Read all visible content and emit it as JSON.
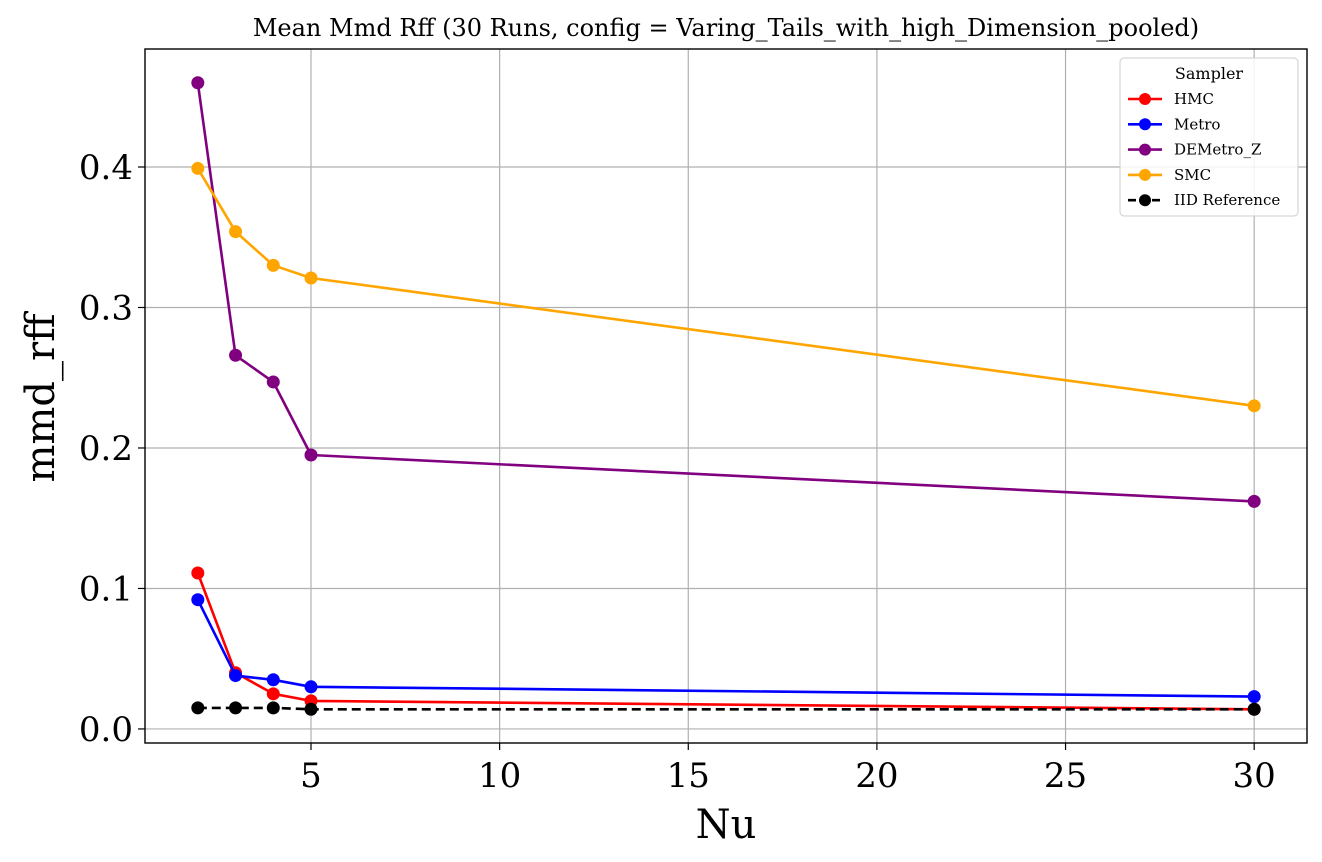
{
  "chart_data": {
    "type": "line",
    "title": "Mean Mmd Rff (30 Runs, config = Varing_Tails_with_high_Dimension_pooled)",
    "xlabel": "Nu",
    "ylabel": "mmd_rff",
    "xlim": [
      0.6,
      31.4
    ],
    "ylim": [
      -0.01,
      0.484
    ],
    "xticks": [
      5,
      10,
      15,
      20,
      25,
      30
    ],
    "yticks": [
      0.0,
      0.1,
      0.2,
      0.3,
      0.4
    ],
    "xtick_labels": [
      "5",
      "10",
      "15",
      "20",
      "25",
      "30"
    ],
    "ytick_labels": [
      "0.0",
      "0.1",
      "0.2",
      "0.3",
      "0.4"
    ],
    "grid": true,
    "legend": {
      "title": "Sampler",
      "placement": "top-right"
    },
    "x": [
      2,
      3,
      4,
      5,
      30
    ],
    "series": [
      {
        "name": "HMC",
        "color": "#ff0000",
        "linestyle": "solid",
        "values": [
          0.111,
          0.04,
          0.025,
          0.02,
          0.014
        ]
      },
      {
        "name": "Metro",
        "color": "#0000ff",
        "linestyle": "solid",
        "values": [
          0.092,
          0.038,
          0.035,
          0.03,
          0.023
        ]
      },
      {
        "name": "DEMetro_Z",
        "color": "#800080",
        "linestyle": "solid",
        "values": [
          0.46,
          0.266,
          0.247,
          0.195,
          0.162
        ]
      },
      {
        "name": "SMC",
        "color": "#ffa500",
        "linestyle": "solid",
        "values": [
          0.399,
          0.354,
          0.33,
          0.321,
          0.23
        ]
      },
      {
        "name": "IID Reference",
        "color": "#000000",
        "linestyle": "dashed",
        "values": [
          0.015,
          0.015,
          0.015,
          0.014,
          0.014
        ]
      }
    ]
  }
}
